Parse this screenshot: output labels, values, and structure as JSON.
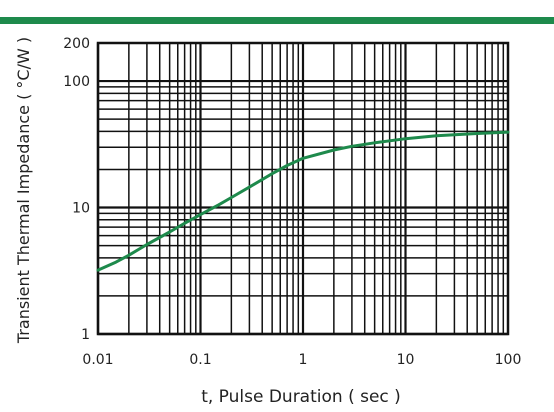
{
  "chart_data": {
    "type": "line",
    "title": "",
    "xlabel": "t, Pulse Duration ( sec )",
    "ylabel": "Transient Thermal Impedance ( °C/W )",
    "x_scale": "log",
    "y_scale": "log",
    "xlim": [
      0.01,
      100
    ],
    "ylim": [
      1,
      200
    ],
    "x_ticks": [
      0.01,
      0.1,
      1,
      10,
      100
    ],
    "x_tick_labels": [
      "0.01",
      "0.1",
      "1",
      "10",
      "100"
    ],
    "y_ticks": [
      1,
      10,
      100,
      200
    ],
    "y_tick_labels": [
      "1",
      "10",
      "100",
      "200"
    ],
    "grid": true,
    "line_color": "#1e8a4c",
    "header_color": "#1e8a4c",
    "series": [
      {
        "name": "",
        "x": [
          0.01,
          0.015,
          0.02,
          0.03,
          0.05,
          0.07,
          0.1,
          0.15,
          0.2,
          0.3,
          0.5,
          0.7,
          1,
          2,
          3,
          5,
          10,
          20,
          50,
          100
        ],
        "y": [
          3.2,
          3.7,
          4.2,
          5.1,
          6.4,
          7.5,
          8.8,
          10.5,
          12,
          14.5,
          18.5,
          21.5,
          24.5,
          28.5,
          30.5,
          32.5,
          35,
          37,
          38.5,
          39.5
        ]
      }
    ]
  }
}
